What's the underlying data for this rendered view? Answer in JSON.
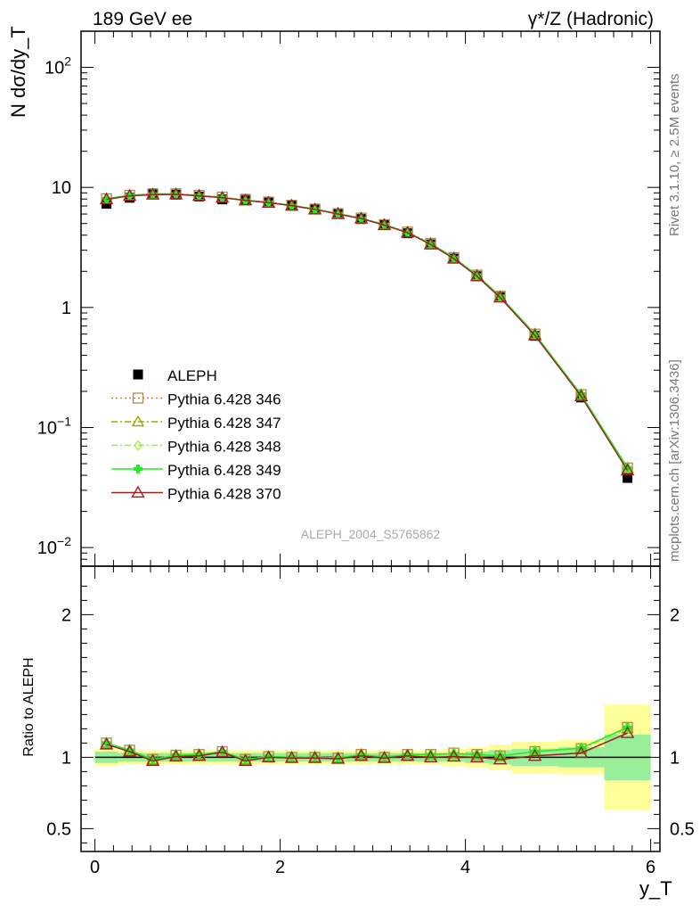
{
  "header": {
    "left": "189 GeV ee",
    "right": "γ*/Z (Hadronic)"
  },
  "side_labels": {
    "rivet": "Rivet 3.1.10, ≥ 2.5M events",
    "mcplots": "mcplots.cern.ch [arXiv:1306.3436]"
  },
  "analysis_label": "ALEPH_2004_S5765862",
  "chart_data": [
    {
      "type": "line",
      "panel": "main",
      "ylabel": "N dσ/dy_T",
      "yscale": "log",
      "ylim": [
        0.007,
        200
      ],
      "xlim": [
        -0.15,
        6.1
      ],
      "yticks": [
        {
          "value": 0.01,
          "base": "10",
          "exp": "−2"
        },
        {
          "value": 0.1,
          "base": "10",
          "exp": "−1"
        },
        {
          "value": 1,
          "base": "1",
          "exp": ""
        },
        {
          "value": 10,
          "base": "10",
          "exp": ""
        },
        {
          "value": 100,
          "base": "10",
          "exp": "2"
        }
      ],
      "legend_position": "left-middle",
      "x": [
        0.125,
        0.375,
        0.625,
        0.875,
        1.125,
        1.375,
        1.625,
        1.875,
        2.125,
        2.375,
        2.625,
        2.875,
        3.125,
        3.375,
        3.625,
        3.875,
        4.125,
        4.375,
        4.75,
        5.25,
        5.75
      ],
      "data": {
        "name": "ALEPH",
        "values": [
          7.3,
          8.2,
          8.9,
          8.7,
          8.4,
          7.95,
          8.0,
          7.5,
          7.1,
          6.6,
          6.1,
          5.45,
          4.9,
          4.15,
          3.35,
          2.55,
          1.82,
          1.22,
          0.58,
          0.178,
          0.038
        ]
      },
      "series": [
        {
          "name": "Pythia 6.428 346",
          "color": "#b5884a",
          "marker": "square",
          "dash": "2,3",
          "values": [
            8.05,
            8.6,
            8.85,
            8.85,
            8.6,
            8.3,
            7.85,
            7.55,
            7.1,
            6.6,
            6.05,
            5.55,
            4.9,
            4.25,
            3.42,
            2.6,
            1.86,
            1.24,
            0.6,
            0.188,
            0.046
          ]
        },
        {
          "name": "Pythia 6.428 347",
          "color": "#99aa00",
          "marker": "triangle",
          "dash": "7,3,2,3",
          "values": [
            8.05,
            8.55,
            8.8,
            8.8,
            8.55,
            8.25,
            7.8,
            7.5,
            7.05,
            6.6,
            6.05,
            5.5,
            4.9,
            4.2,
            3.4,
            2.58,
            1.85,
            1.23,
            0.6,
            0.188,
            0.046
          ]
        },
        {
          "name": "Pythia 6.428 348",
          "color": "#99ee33",
          "marker": "diamond",
          "dash": "7,3,2,3",
          "values": [
            8.05,
            8.55,
            8.8,
            8.8,
            8.55,
            8.25,
            7.8,
            7.5,
            7.05,
            6.6,
            6.05,
            5.5,
            4.9,
            4.2,
            3.4,
            2.58,
            1.85,
            1.23,
            0.6,
            0.188,
            0.046
          ]
        },
        {
          "name": "Pythia 6.428 349",
          "color": "#22ee22",
          "marker": "cross",
          "dash": "",
          "values": [
            8.05,
            8.6,
            8.8,
            8.8,
            8.55,
            8.25,
            7.8,
            7.5,
            7.05,
            6.6,
            6.05,
            5.5,
            4.9,
            4.2,
            3.4,
            2.6,
            1.86,
            1.24,
            0.6,
            0.188,
            0.046
          ]
        },
        {
          "name": "Pythia 6.428 370",
          "color": "#992222",
          "marker": "triangle-open",
          "dash": "",
          "values": [
            7.95,
            8.5,
            8.7,
            8.75,
            8.5,
            8.2,
            7.8,
            7.45,
            7.05,
            6.55,
            6.0,
            5.5,
            4.85,
            4.2,
            3.35,
            2.55,
            1.82,
            1.21,
            0.585,
            0.182,
            0.044
          ]
        }
      ]
    },
    {
      "type": "line",
      "panel": "ratio",
      "xlabel": "y_T",
      "ylabel": "Ratio to ALEPH",
      "ylim": [
        0.34,
        2.34
      ],
      "xlim": [
        -0.15,
        6.1
      ],
      "yticks": [
        0.5,
        1,
        2
      ],
      "xticks": [
        0,
        2,
        4,
        6
      ],
      "x": [
        0.125,
        0.375,
        0.625,
        0.875,
        1.125,
        1.375,
        1.625,
        1.875,
        2.125,
        2.375,
        2.625,
        2.875,
        3.125,
        3.375,
        3.625,
        3.875,
        4.125,
        4.375,
        4.75,
        5.25,
        5.75
      ],
      "bin_edges": [
        0,
        0.25,
        0.5,
        0.75,
        1,
        1.25,
        1.5,
        1.75,
        2,
        2.25,
        2.5,
        2.75,
        3,
        3.25,
        3.5,
        3.75,
        4,
        4.25,
        4.5,
        5,
        5.5,
        6
      ],
      "band_inner": [
        0.04,
        0.03,
        0.03,
        0.03,
        0.03,
        0.03,
        0.03,
        0.03,
        0.03,
        0.03,
        0.03,
        0.03,
        0.03,
        0.03,
        0.03,
        0.03,
        0.04,
        0.05,
        0.06,
        0.07,
        0.16
      ],
      "band_outer": [
        0.06,
        0.05,
        0.05,
        0.05,
        0.05,
        0.05,
        0.05,
        0.05,
        0.05,
        0.05,
        0.05,
        0.05,
        0.05,
        0.05,
        0.05,
        0.06,
        0.07,
        0.09,
        0.11,
        0.12,
        0.37
      ],
      "series": [
        {
          "name": "Pythia 6.428 346",
          "color": "#b5884a",
          "marker": "square",
          "dash": "2,3",
          "values": [
            1.1,
            1.05,
            0.985,
            1.015,
            1.02,
            1.04,
            0.985,
            1.005,
            1.0,
            1.0,
            0.995,
            1.02,
            1.0,
            1.02,
            1.02,
            1.03,
            1.02,
            1.01,
            1.04,
            1.06,
            1.21
          ]
        },
        {
          "name": "Pythia 6.428 347",
          "color": "#99aa00",
          "marker": "triangle",
          "dash": "7,3,2,3",
          "values": [
            1.1,
            1.05,
            0.985,
            1.015,
            1.02,
            1.04,
            0.985,
            1.005,
            1.0,
            1.0,
            0.995,
            1.02,
            1.0,
            1.015,
            1.015,
            1.02,
            1.015,
            1.01,
            1.04,
            1.06,
            1.2
          ]
        },
        {
          "name": "Pythia 6.428 348",
          "color": "#99ee33",
          "marker": "diamond",
          "dash": "7,3,2,3",
          "values": [
            1.1,
            1.05,
            0.985,
            1.015,
            1.02,
            1.04,
            0.985,
            1.005,
            1.0,
            1.0,
            0.995,
            1.02,
            1.0,
            1.015,
            1.015,
            1.02,
            1.015,
            1.01,
            1.04,
            1.06,
            1.2
          ]
        },
        {
          "name": "Pythia 6.428 349",
          "color": "#22ee22",
          "marker": "cross",
          "dash": "",
          "values": [
            1.1,
            1.05,
            0.985,
            1.015,
            1.02,
            1.04,
            0.985,
            1.005,
            1.0,
            1.0,
            0.995,
            1.02,
            1.0,
            1.02,
            1.02,
            1.025,
            1.02,
            1.01,
            1.04,
            1.065,
            1.21
          ]
        },
        {
          "name": "Pythia 6.428 370",
          "color": "#992222",
          "marker": "triangle-open",
          "dash": "",
          "values": [
            1.09,
            1.04,
            0.975,
            1.005,
            1.01,
            1.035,
            0.975,
            1.0,
            0.995,
            0.995,
            0.99,
            1.01,
            0.995,
            1.01,
            1.0,
            1.005,
            1.0,
            0.985,
            1.01,
            1.03,
            1.17
          ]
        }
      ]
    }
  ]
}
